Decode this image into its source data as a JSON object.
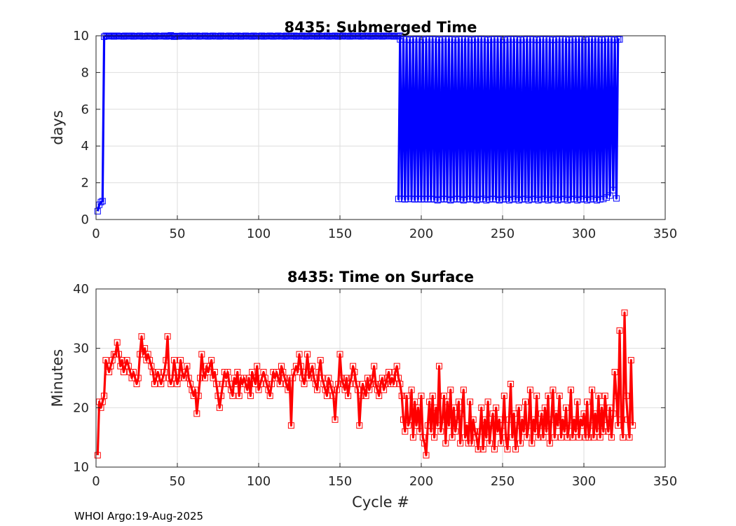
{
  "footer": "WHOI Argo:19-Aug-2025",
  "chart_data": [
    {
      "type": "line",
      "title": "8435: Submerged Time",
      "xlabel": "",
      "ylabel": "days",
      "xlim": [
        0,
        350
      ],
      "ylim": [
        0,
        10
      ],
      "xticks": [
        0,
        50,
        100,
        150,
        200,
        250,
        300,
        350
      ],
      "yticks": [
        0,
        2,
        4,
        6,
        8,
        10
      ],
      "grid": true,
      "marker": "square",
      "color": "#0000ff",
      "series": [
        {
          "name": "submerged_days",
          "segments": [
            {
              "x_start": 1,
              "values": [
                0.45,
                0.8,
                0.95,
                1.0,
                9.95,
                10.0
              ]
            },
            {
              "x_start": 7,
              "values": [
                9.98,
                9.97,
                9.99,
                10.0,
                9.96,
                9.98,
                10.0,
                9.97,
                9.99,
                9.98,
                9.96,
                10.0,
                9.97,
                9.99,
                9.98,
                10.0,
                9.96,
                9.98,
                9.99,
                9.97,
                10.0,
                9.98,
                9.96,
                9.99,
                9.97,
                10.0,
                9.98,
                9.97,
                9.99,
                9.96,
                10.0,
                9.98,
                9.97,
                9.99,
                9.98,
                10.0,
                9.96,
                9.98,
                9.99,
                10.02,
                9.97,
                9.95,
                9.98,
                9.99,
                9.96,
                9.98,
                10.0,
                9.97,
                9.99,
                9.98,
                9.96,
                10.0,
                9.97,
                9.99,
                9.98,
                10.0,
                9.96,
                9.98,
                9.99,
                9.97,
                10.0,
                9.98,
                9.96,
                9.99,
                9.97,
                10.0,
                9.98,
                9.97,
                9.99,
                9.96,
                10.0,
                9.98,
                9.97,
                9.99,
                9.98,
                10.0,
                9.96,
                9.98,
                9.99,
                9.97,
                10.0,
                9.98,
                9.96,
                9.99,
                9.97,
                10.0,
                9.98,
                9.97,
                9.99,
                9.96,
                10.0,
                9.98,
                9.97,
                9.99,
                9.98,
                10.0,
                9.96,
                9.98,
                9.99,
                9.97,
                10.0,
                9.98,
                9.96,
                9.99,
                9.97,
                10.0,
                9.98,
                9.97,
                9.99,
                9.96,
                10.0,
                9.98,
                9.97,
                9.99,
                9.98,
                10.0,
                9.96,
                9.98,
                9.99,
                9.97,
                10.0,
                9.98,
                9.96,
                9.99,
                9.97,
                10.0,
                9.98,
                9.97,
                9.99,
                9.96,
                10.0,
                9.98,
                9.97,
                9.99,
                9.98,
                10.0,
                9.96,
                9.98,
                9.99,
                9.97,
                10.0,
                9.98,
                9.96,
                9.99,
                9.97,
                10.0,
                9.98,
                9.97,
                9.99,
                9.96,
                10.0,
                9.98,
                9.97,
                9.99,
                9.98,
                10.0,
                9.96,
                9.98,
                9.99,
                9.97,
                10.0,
                9.98,
                9.96,
                9.99,
                9.97,
                10.0,
                9.98,
                9.97,
                9.99,
                9.96,
                10.0,
                9.98,
                9.97,
                9.99,
                9.98,
                10.0,
                9.96,
                9.98,
                9.99,
                9.97,
                10.0
              ]
            },
            {
              "x_start": 186,
              "values": [
                1.12,
                9.8,
                1.12,
                9.8,
                1.1,
                9.8,
                1.12,
                9.78,
                1.12,
                9.8,
                1.1,
                9.8,
                1.12,
                9.8,
                1.1,
                9.78,
                1.12,
                9.8,
                1.1,
                9.8,
                1.12,
                9.8,
                1.1,
                9.8,
                1.05,
                9.78,
                1.1,
                9.8,
                1.12,
                9.8,
                1.1,
                9.8,
                1.05,
                9.8,
                1.1,
                9.78,
                1.12,
                9.8,
                1.1,
                9.8,
                1.05,
                9.8,
                1.1,
                9.8,
                1.12,
                9.78,
                1.1,
                9.8,
                1.05,
                9.8,
                1.1,
                9.8,
                1.12,
                9.8,
                1.05,
                9.78,
                1.1,
                9.8,
                1.12,
                9.8,
                1.1,
                9.8,
                1.05,
                9.8,
                1.1,
                9.78,
                1.12,
                9.8,
                1.05,
                9.8,
                1.1,
                9.8,
                1.12,
                9.8,
                1.05,
                9.78,
                1.1,
                9.8,
                1.12,
                9.8,
                1.05,
                9.8,
                1.1,
                9.8,
                1.12,
                9.78,
                1.05,
                9.8,
                1.1,
                9.8,
                1.12,
                9.8,
                1.05,
                9.8,
                1.1,
                9.78,
                1.12,
                9.8,
                1.05,
                9.8,
                1.1,
                9.8,
                1.12,
                9.8,
                1.05,
                9.78,
                1.1,
                9.8,
                1.12,
                9.8,
                1.05,
                9.8,
                1.1,
                9.8,
                1.12,
                9.78,
                1.05,
                9.8,
                1.1,
                9.8,
                1.12,
                9.8,
                1.05,
                9.8,
                1.1,
                9.78,
                1.12,
                9.8,
                1.2,
                9.8,
                1.3,
                9.8,
                1.6,
                9.78,
                1.15,
                9.8,
                9.8
              ]
            }
          ]
        }
      ]
    },
    {
      "type": "line",
      "title": "8435: Time on Surface",
      "xlabel": "Cycle #",
      "ylabel": "Minutes",
      "xlim": [
        0,
        350
      ],
      "ylim": [
        10,
        40
      ],
      "xticks": [
        0,
        50,
        100,
        150,
        200,
        250,
        300,
        350
      ],
      "yticks": [
        10,
        20,
        30,
        40
      ],
      "grid": true,
      "marker": "square",
      "color": "#ff0000",
      "series": [
        {
          "name": "surface_minutes",
          "x_start": 1,
          "values": [
            12,
            21,
            20,
            21,
            22,
            28,
            27,
            26,
            27,
            28,
            29,
            29,
            31,
            29,
            27,
            28,
            26,
            27,
            28,
            27,
            26,
            25,
            26,
            25,
            24,
            25,
            29,
            32,
            29,
            30,
            28,
            29,
            28,
            27,
            26,
            24,
            25,
            26,
            25,
            24,
            25,
            26,
            28,
            32,
            25,
            24,
            25,
            28,
            26,
            24,
            25,
            28,
            26,
            25,
            26,
            27,
            25,
            24,
            23,
            22,
            23,
            19,
            22,
            25,
            29,
            26,
            25,
            27,
            26,
            27,
            28,
            25,
            26,
            24,
            22,
            20,
            22,
            24,
            26,
            25,
            26,
            24,
            23,
            22,
            25,
            24,
            26,
            22,
            25,
            24,
            25,
            24,
            23,
            25,
            22,
            26,
            25,
            24,
            27,
            23,
            24,
            25,
            26,
            25,
            24,
            23,
            22,
            24,
            26,
            25,
            26,
            25,
            24,
            27,
            26,
            25,
            24,
            23,
            25,
            17,
            25,
            26,
            27,
            26,
            29,
            27,
            25,
            24,
            26,
            29,
            25,
            26,
            27,
            25,
            24,
            23,
            26,
            28,
            25,
            24,
            23,
            22,
            25,
            24,
            23,
            22,
            18,
            23,
            24,
            29,
            25,
            24,
            23,
            25,
            22,
            24,
            25,
            27,
            26,
            24,
            23,
            17,
            22,
            24,
            23,
            22,
            25,
            23,
            24,
            25,
            27,
            24,
            23,
            22,
            24,
            25,
            23,
            24,
            25,
            26,
            24,
            25,
            24,
            26,
            27,
            25,
            24,
            22,
            18,
            16,
            22,
            17,
            18,
            23,
            15,
            21,
            17,
            20,
            16,
            22,
            15,
            14,
            12,
            17,
            21,
            16,
            22,
            15,
            20,
            17,
            27,
            16,
            18,
            22,
            14,
            21,
            17,
            23,
            15,
            20,
            16,
            18,
            21,
            14,
            19,
            23,
            15,
            17,
            14,
            21,
            14,
            18,
            16,
            15,
            13,
            16,
            20,
            13,
            18,
            15,
            21,
            14,
            17,
            19,
            13,
            20,
            16,
            18,
            14,
            17,
            22,
            15,
            13,
            18,
            24,
            15,
            19,
            13,
            17,
            20,
            14,
            18,
            16,
            21,
            15,
            17,
            23,
            14,
            18,
            16,
            22,
            15,
            17,
            19,
            15,
            20,
            16,
            22,
            14,
            18,
            23,
            15,
            19,
            17,
            22,
            15,
            18,
            16,
            20,
            15,
            17,
            23,
            15,
            18,
            16,
            21,
            15,
            18,
            17,
            19,
            15,
            21,
            15,
            17,
            23,
            15,
            19,
            16,
            22,
            15,
            20,
            16,
            22,
            18,
            16,
            20,
            15,
            19,
            26,
            22,
            17,
            33,
            18,
            15,
            36,
            22,
            18,
            15,
            28,
            17
          ]
        }
      ]
    }
  ]
}
